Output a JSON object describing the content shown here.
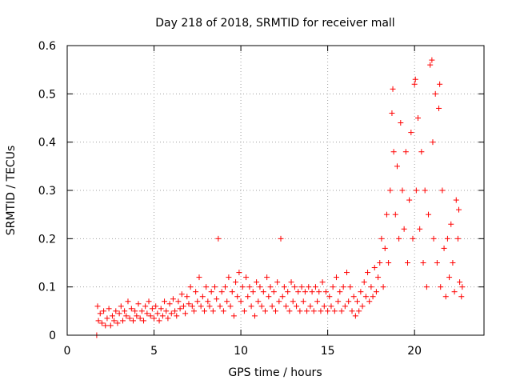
{
  "chart_data": {
    "type": "scatter",
    "title": "Day 218 of 2018, SRMTID for receiver mall",
    "xlabel": "GPS time / hours",
    "ylabel": "SRMTID / TECUs",
    "xlim": [
      0,
      24
    ],
    "ylim": [
      0,
      0.6
    ],
    "xticks": [
      0,
      5,
      10,
      15,
      20
    ],
    "yticks": [
      0,
      0.1,
      0.2,
      0.3,
      0.4,
      0.5,
      0.6
    ],
    "xtick_labels": [
      "0",
      "5",
      "10",
      "15",
      "20"
    ],
    "ytick_labels": [
      "0",
      "0.1",
      "0.2",
      "0.3",
      "0.4",
      "0.5",
      "0.6"
    ],
    "grid": true,
    "marker": "+",
    "series": [
      {
        "name": "SRMTID",
        "color": "#ff0000",
        "points": [
          [
            1.7,
            0.0
          ],
          [
            1.75,
            0.06
          ],
          [
            1.8,
            0.03
          ],
          [
            1.9,
            0.045
          ],
          [
            2.0,
            0.025
          ],
          [
            2.1,
            0.05
          ],
          [
            2.2,
            0.02
          ],
          [
            2.3,
            0.035
          ],
          [
            2.4,
            0.055
          ],
          [
            2.5,
            0.02
          ],
          [
            2.6,
            0.04
          ],
          [
            2.7,
            0.03
          ],
          [
            2.8,
            0.05
          ],
          [
            2.9,
            0.025
          ],
          [
            3.0,
            0.045
          ],
          [
            3.1,
            0.06
          ],
          [
            3.2,
            0.03
          ],
          [
            3.3,
            0.05
          ],
          [
            3.4,
            0.04
          ],
          [
            3.5,
            0.07
          ],
          [
            3.6,
            0.035
          ],
          [
            3.7,
            0.055
          ],
          [
            3.8,
            0.03
          ],
          [
            3.9,
            0.05
          ],
          [
            4.0,
            0.04
          ],
          [
            4.1,
            0.065
          ],
          [
            4.2,
            0.035
          ],
          [
            4.3,
            0.05
          ],
          [
            4.4,
            0.03
          ],
          [
            4.5,
            0.06
          ],
          [
            4.6,
            0.045
          ],
          [
            4.7,
            0.07
          ],
          [
            4.8,
            0.04
          ],
          [
            4.9,
            0.055
          ],
          [
            5.0,
            0.035
          ],
          [
            5.1,
            0.06
          ],
          [
            5.2,
            0.045
          ],
          [
            5.3,
            0.03
          ],
          [
            5.4,
            0.055
          ],
          [
            5.5,
            0.04
          ],
          [
            5.6,
            0.07
          ],
          [
            5.7,
            0.05
          ],
          [
            5.8,
            0.035
          ],
          [
            5.9,
            0.065
          ],
          [
            6.0,
            0.045
          ],
          [
            6.1,
            0.075
          ],
          [
            6.2,
            0.05
          ],
          [
            6.3,
            0.04
          ],
          [
            6.4,
            0.07
          ],
          [
            6.5,
            0.055
          ],
          [
            6.6,
            0.085
          ],
          [
            6.7,
            0.06
          ],
          [
            6.8,
            0.045
          ],
          [
            6.9,
            0.08
          ],
          [
            7.0,
            0.065
          ],
          [
            7.1,
            0.1
          ],
          [
            7.2,
            0.06
          ],
          [
            7.3,
            0.05
          ],
          [
            7.4,
            0.09
          ],
          [
            7.5,
            0.07
          ],
          [
            7.6,
            0.12
          ],
          [
            7.7,
            0.06
          ],
          [
            7.8,
            0.08
          ],
          [
            7.9,
            0.05
          ],
          [
            8.0,
            0.1
          ],
          [
            8.1,
            0.07
          ],
          [
            8.2,
            0.06
          ],
          [
            8.3,
            0.09
          ],
          [
            8.4,
            0.05
          ],
          [
            8.5,
            0.1
          ],
          [
            8.6,
            0.075
          ],
          [
            8.7,
            0.2
          ],
          [
            8.8,
            0.06
          ],
          [
            8.9,
            0.09
          ],
          [
            9.0,
            0.05
          ],
          [
            9.1,
            0.1
          ],
          [
            9.2,
            0.07
          ],
          [
            9.3,
            0.12
          ],
          [
            9.4,
            0.06
          ],
          [
            9.5,
            0.09
          ],
          [
            9.6,
            0.04
          ],
          [
            9.7,
            0.11
          ],
          [
            9.8,
            0.08
          ],
          [
            9.9,
            0.13
          ],
          [
            10.0,
            0.07
          ],
          [
            10.1,
            0.1
          ],
          [
            10.2,
            0.05
          ],
          [
            10.3,
            0.12
          ],
          [
            10.4,
            0.08
          ],
          [
            10.5,
            0.1
          ],
          [
            10.6,
            0.06
          ],
          [
            10.7,
            0.09
          ],
          [
            10.8,
            0.04
          ],
          [
            10.9,
            0.11
          ],
          [
            11.0,
            0.07
          ],
          [
            11.1,
            0.1
          ],
          [
            11.2,
            0.06
          ],
          [
            11.3,
            0.09
          ],
          [
            11.4,
            0.05
          ],
          [
            11.5,
            0.12
          ],
          [
            11.6,
            0.08
          ],
          [
            11.7,
            0.1
          ],
          [
            11.8,
            0.06
          ],
          [
            11.9,
            0.09
          ],
          [
            12.0,
            0.05
          ],
          [
            12.1,
            0.11
          ],
          [
            12.2,
            0.07
          ],
          [
            12.3,
            0.2
          ],
          [
            12.4,
            0.08
          ],
          [
            12.5,
            0.1
          ],
          [
            12.6,
            0.06
          ],
          [
            12.7,
            0.09
          ],
          [
            12.8,
            0.05
          ],
          [
            12.9,
            0.11
          ],
          [
            13.0,
            0.07
          ],
          [
            13.1,
            0.1
          ],
          [
            13.2,
            0.06
          ],
          [
            13.3,
            0.09
          ],
          [
            13.4,
            0.05
          ],
          [
            13.5,
            0.1
          ],
          [
            13.6,
            0.07
          ],
          [
            13.7,
            0.09
          ],
          [
            13.8,
            0.05
          ],
          [
            13.9,
            0.1
          ],
          [
            14.0,
            0.06
          ],
          [
            14.1,
            0.09
          ],
          [
            14.2,
            0.05
          ],
          [
            14.3,
            0.1
          ],
          [
            14.4,
            0.07
          ],
          [
            14.5,
            0.09
          ],
          [
            14.6,
            0.05
          ],
          [
            14.7,
            0.11
          ],
          [
            14.8,
            0.06
          ],
          [
            14.9,
            0.09
          ],
          [
            15.0,
            0.05
          ],
          [
            15.1,
            0.08
          ],
          [
            15.2,
            0.06
          ],
          [
            15.3,
            0.1
          ],
          [
            15.4,
            0.05
          ],
          [
            15.5,
            0.12
          ],
          [
            15.6,
            0.07
          ],
          [
            15.7,
            0.09
          ],
          [
            15.8,
            0.05
          ],
          [
            15.9,
            0.1
          ],
          [
            16.0,
            0.06
          ],
          [
            16.1,
            0.13
          ],
          [
            16.2,
            0.07
          ],
          [
            16.3,
            0.1
          ],
          [
            16.4,
            0.05
          ],
          [
            16.5,
            0.08
          ],
          [
            16.6,
            0.04
          ],
          [
            16.7,
            0.07
          ],
          [
            16.8,
            0.05
          ],
          [
            16.9,
            0.09
          ],
          [
            17.0,
            0.06
          ],
          [
            17.1,
            0.11
          ],
          [
            17.2,
            0.08
          ],
          [
            17.3,
            0.13
          ],
          [
            17.4,
            0.07
          ],
          [
            17.5,
            0.1
          ],
          [
            17.6,
            0.08
          ],
          [
            17.7,
            0.14
          ],
          [
            17.8,
            0.09
          ],
          [
            17.9,
            0.12
          ],
          [
            18.0,
            0.15
          ],
          [
            18.1,
            0.2
          ],
          [
            18.2,
            0.1
          ],
          [
            18.3,
            0.18
          ],
          [
            18.4,
            0.25
          ],
          [
            18.5,
            0.15
          ],
          [
            18.6,
            0.3
          ],
          [
            18.7,
            0.46
          ],
          [
            18.75,
            0.51
          ],
          [
            18.8,
            0.38
          ],
          [
            18.9,
            0.25
          ],
          [
            19.0,
            0.35
          ],
          [
            19.1,
            0.2
          ],
          [
            19.2,
            0.44
          ],
          [
            19.3,
            0.3
          ],
          [
            19.4,
            0.22
          ],
          [
            19.5,
            0.38
          ],
          [
            19.6,
            0.15
          ],
          [
            19.7,
            0.28
          ],
          [
            19.8,
            0.42
          ],
          [
            19.9,
            0.2
          ],
          [
            20.0,
            0.52
          ],
          [
            20.05,
            0.53
          ],
          [
            20.1,
            0.3
          ],
          [
            20.2,
            0.45
          ],
          [
            20.3,
            0.22
          ],
          [
            20.4,
            0.38
          ],
          [
            20.5,
            0.15
          ],
          [
            20.6,
            0.3
          ],
          [
            20.7,
            0.1
          ],
          [
            20.8,
            0.25
          ],
          [
            20.9,
            0.56
          ],
          [
            21.0,
            0.57
          ],
          [
            21.05,
            0.4
          ],
          [
            21.1,
            0.2
          ],
          [
            21.2,
            0.5
          ],
          [
            21.3,
            0.15
          ],
          [
            21.4,
            0.47
          ],
          [
            21.45,
            0.52
          ],
          [
            21.5,
            0.1
          ],
          [
            21.6,
            0.3
          ],
          [
            21.7,
            0.18
          ],
          [
            21.8,
            0.08
          ],
          [
            21.9,
            0.2
          ],
          [
            22.0,
            0.12
          ],
          [
            22.1,
            0.23
          ],
          [
            22.2,
            0.15
          ],
          [
            22.3,
            0.09
          ],
          [
            22.4,
            0.28
          ],
          [
            22.5,
            0.2
          ],
          [
            22.55,
            0.26
          ],
          [
            22.6,
            0.11
          ],
          [
            22.7,
            0.08
          ],
          [
            22.75,
            0.1
          ]
        ]
      }
    ]
  }
}
